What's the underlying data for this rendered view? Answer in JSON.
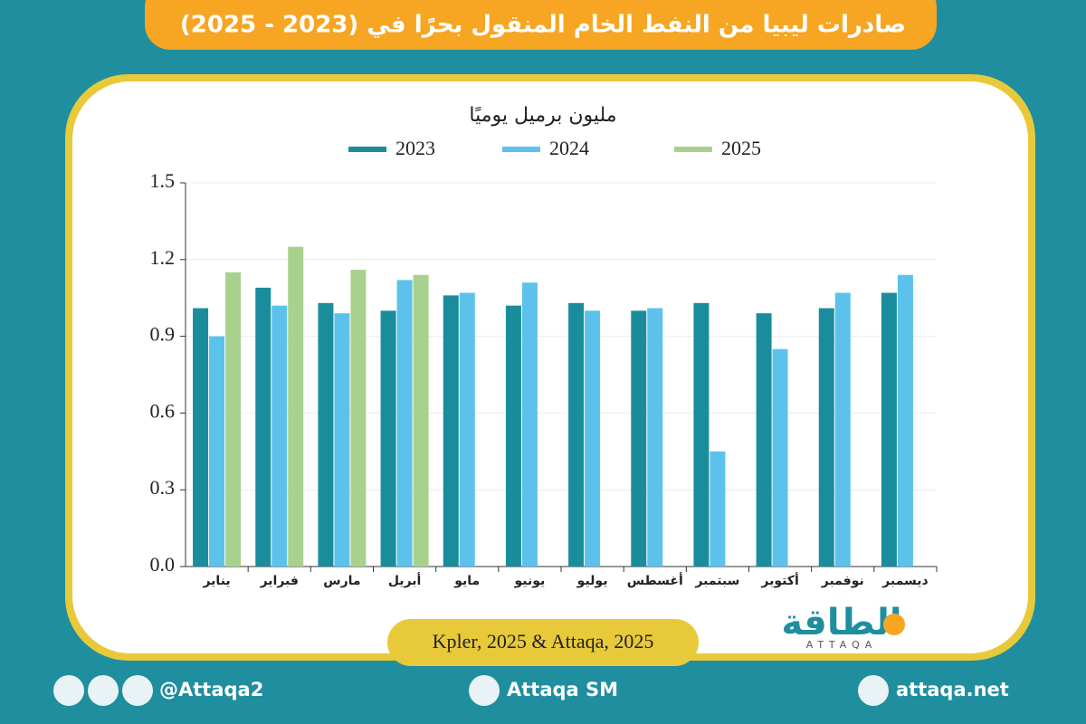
{
  "header": {
    "title": "صادرات ليبيا من النفط الخام المنقول بحرًا في (2023 - 2025)"
  },
  "chart_data": {
    "type": "bar",
    "subtitle": "مليون برميل يوميًا",
    "categories": [
      "يناير",
      "فبراير",
      "مارس",
      "أبريل",
      "مايو",
      "يونيو",
      "يوليو",
      "أغسطس",
      "سبتمبر",
      "أكتوبر",
      "نوفمبر",
      "ديسمبر"
    ],
    "series": [
      {
        "name": "2023",
        "color": "#1a8d9c",
        "values": [
          1.01,
          1.09,
          1.03,
          1.0,
          1.06,
          1.02,
          1.03,
          1.0,
          1.03,
          0.99,
          1.01,
          1.07
        ]
      },
      {
        "name": "2024",
        "color": "#5cc2ec",
        "values": [
          0.9,
          1.02,
          0.99,
          1.12,
          1.07,
          1.11,
          1.0,
          1.01,
          0.45,
          0.85,
          1.07,
          1.14
        ]
      },
      {
        "name": "2025",
        "color": "#a9d18e",
        "values": [
          1.15,
          1.25,
          1.16,
          1.14,
          null,
          null,
          null,
          null,
          null,
          null,
          null,
          null
        ]
      }
    ],
    "ylim": [
      0,
      1.5
    ],
    "yticks": [
      {
        "value": 0,
        "label": "0.0"
      },
      0.3,
      0.6,
      0.9,
      1.2,
      1.5
    ],
    "grid": true,
    "source": "Kpler, 2025 & Attaqa, 2025"
  },
  "logo": {
    "name": "الطاقة",
    "latin": "ATTAQA"
  },
  "footer": {
    "social": "@Attaqa2",
    "youtube": "Attaqa SM",
    "website": "attaqa.net"
  }
}
